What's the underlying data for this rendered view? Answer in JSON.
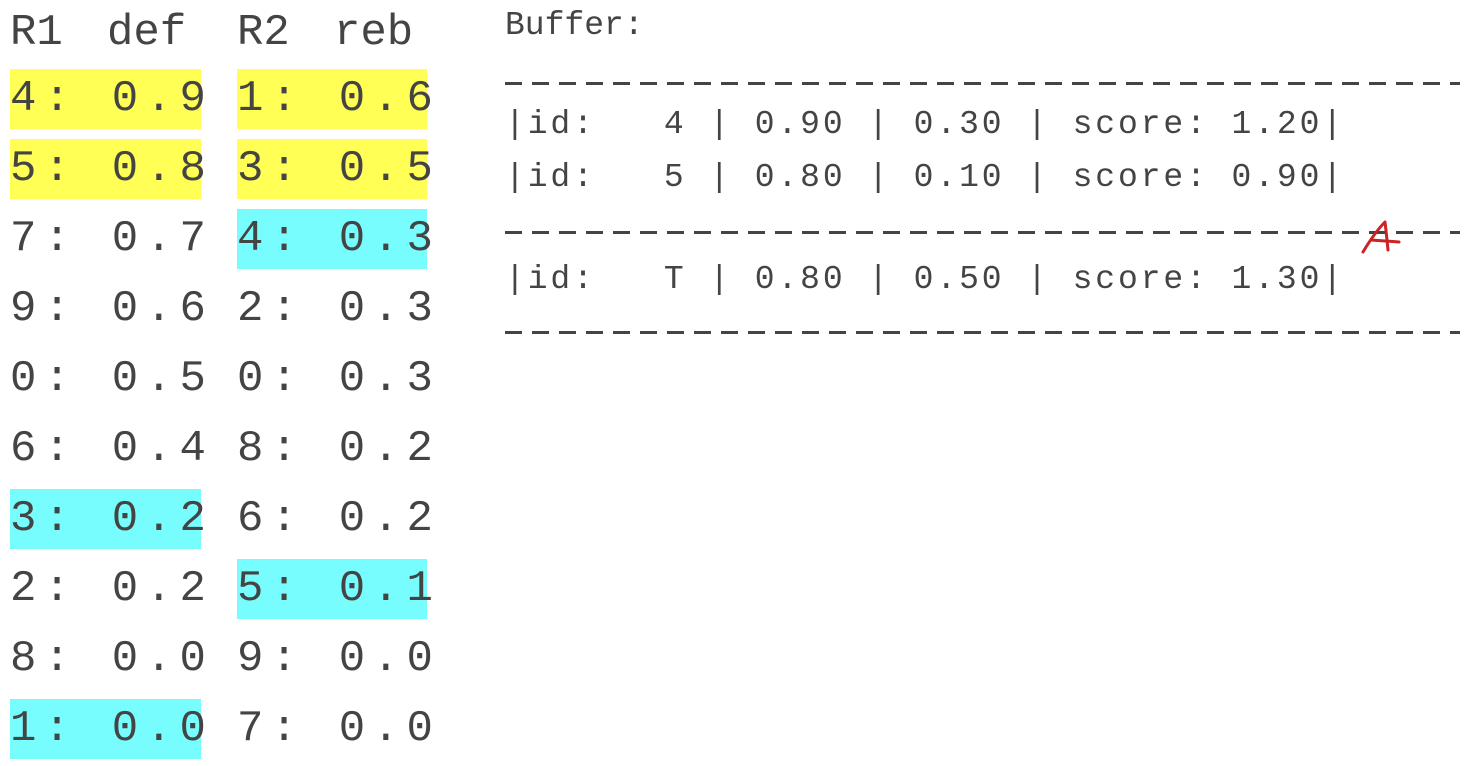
{
  "lists": {
    "headers": {
      "r1": "R1",
      "def": "def",
      "r2": "R2",
      "reb": "reb"
    },
    "rows": [
      {
        "r1": "4: 0.9",
        "r1_highlight": "yellow",
        "r2": "1: 0.6",
        "r2_highlight": "yellow"
      },
      {
        "r1": "5: 0.8",
        "r1_highlight": "yellow",
        "r2": "3: 0.5",
        "r2_highlight": "yellow"
      },
      {
        "r1": "7: 0.7",
        "r1_highlight": "",
        "r2": "4: 0.3",
        "r2_highlight": "cyan"
      },
      {
        "r1": "9: 0.6",
        "r1_highlight": "",
        "r2": "2: 0.3",
        "r2_highlight": ""
      },
      {
        "r1": "0: 0.5",
        "r1_highlight": "",
        "r2": "0: 0.3",
        "r2_highlight": ""
      },
      {
        "r1": "6: 0.4",
        "r1_highlight": "",
        "r2": "8: 0.2",
        "r2_highlight": ""
      },
      {
        "r1": "3: 0.2",
        "r1_highlight": "cyan",
        "r2": "6: 0.2",
        "r2_highlight": ""
      },
      {
        "r1": "2: 0.2",
        "r1_highlight": "",
        "r2": "5: 0.1",
        "r2_highlight": "cyan"
      },
      {
        "r1": "8: 0.0",
        "r1_highlight": "",
        "r2": "9: 0.0",
        "r2_highlight": ""
      },
      {
        "r1": "1: 0.0",
        "r1_highlight": "cyan",
        "r2": "7: 0.0",
        "r2_highlight": ""
      }
    ]
  },
  "buffer": {
    "title": "Buffer:",
    "entries": [
      "|id:   4 | 0.90 | 0.30 | score: 1.20|",
      "|id:   5 | 0.80 | 0.10 | score: 0.90|"
    ],
    "threshold": "|id:   T | 0.80 | 0.50 | score: 1.30|"
  },
  "colors": {
    "yellow": "#ffff55",
    "cyan": "#77fdfd",
    "text": "#444444",
    "annotation": "#cc2222"
  },
  "annotation_icon": "red-handwritten-arrow-icon"
}
